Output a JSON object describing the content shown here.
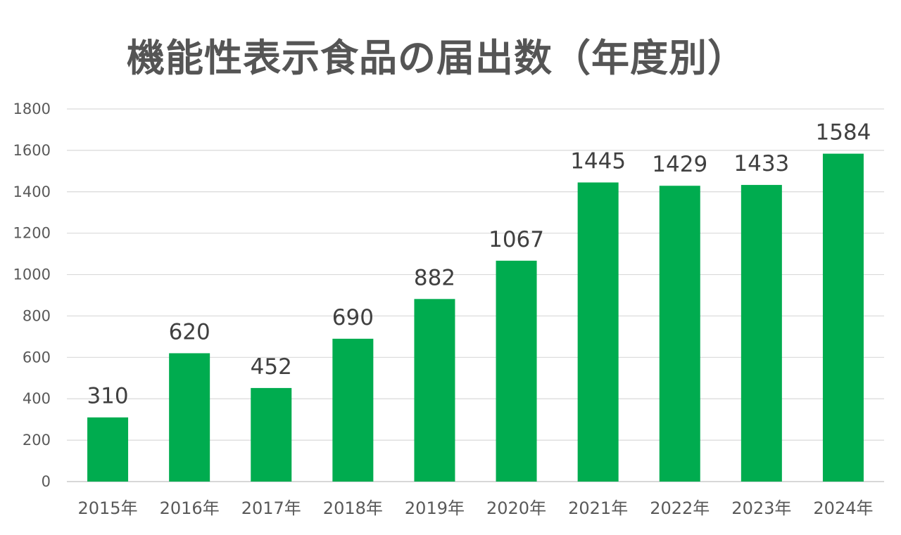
{
  "chart_data": {
    "type": "bar",
    "title": "機能性表示食品の届出数（年度別）",
    "categories": [
      "2015年",
      "2016年",
      "2017年",
      "2018年",
      "2019年",
      "2020年",
      "2021年",
      "2022年",
      "2023年",
      "2024年"
    ],
    "values": [
      310,
      620,
      452,
      690,
      882,
      1067,
      1445,
      1429,
      1433,
      1584
    ],
    "data_labels": [
      "310",
      "620",
      "452",
      "690",
      "882",
      "1067",
      "1445",
      "1429",
      "1433",
      "1584"
    ],
    "yticks": [
      "0",
      "200",
      "400",
      "600",
      "800",
      "1000",
      "1200",
      "1400",
      "1600",
      "1800"
    ],
    "ylim": [
      0,
      1800
    ],
    "xlabel": "",
    "ylabel": "",
    "grid": true,
    "legend": "none",
    "bar_color": "#00ac4f",
    "grid_color": "#d9d9d9"
  }
}
